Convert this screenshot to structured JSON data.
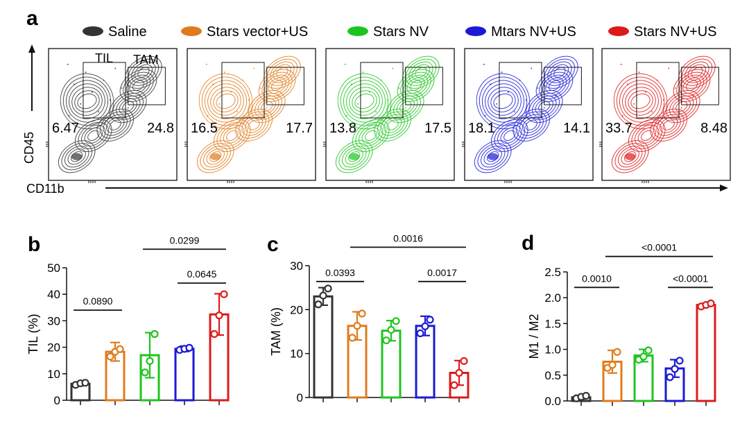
{
  "panel_letters": {
    "a": "a",
    "b": "b",
    "c": "c",
    "d": "d"
  },
  "colors": {
    "saline": "#333333",
    "stars_vector_us": "#e07b1b",
    "stars_nv": "#1ec41e",
    "mtars_nv_us": "#1a1ad6",
    "stars_nv_us": "#dd1a1a"
  },
  "legend": [
    {
      "label": "Saline",
      "color": "#333333"
    },
    {
      "label": "Stars vector+US",
      "color": "#e07b1b"
    },
    {
      "label": "Stars NV",
      "color": "#1ec41e"
    },
    {
      "label": "Mtars NV+US",
      "color": "#1a1ad6"
    },
    {
      "label": "Stars NV+US",
      "color": "#dd1a1a"
    }
  ],
  "flow": {
    "x_axis_label": "CD11b",
    "y_axis_label": "CD45",
    "gate_til_label": "TIL",
    "gate_tam_label": "TAM",
    "plots": [
      {
        "group": "Saline",
        "color": "#333333",
        "til": "6.47",
        "tam": "24.8"
      },
      {
        "group": "Stars vector+US",
        "color": "#e07b1b",
        "til": "16.5",
        "tam": "17.7"
      },
      {
        "group": "Stars NV",
        "color": "#1ec41e",
        "til": "13.8",
        "tam": "17.5"
      },
      {
        "group": "Mtars NV+US",
        "color": "#1a1ad6",
        "til": "18.1",
        "tam": "14.1"
      },
      {
        "group": "Stars NV+US",
        "color": "#dd1a1a",
        "til": "33.7",
        "tam": "8.48"
      }
    ]
  },
  "chart_data": [
    {
      "panel": "b",
      "type": "bar",
      "ylabel": "TIL (%)",
      "ylim": [
        0,
        50
      ],
      "yticks": [
        "0",
        "10",
        "20",
        "30",
        "40",
        "50"
      ],
      "categories": [
        "Saline",
        "Stars vector+US",
        "Stars NV",
        "Mtars NV+US",
        "Stars NV+US"
      ],
      "colors": [
        "#333333",
        "#e07b1b",
        "#1ec41e",
        "#1a1ad6",
        "#dd1a1a"
      ],
      "values": [
        6.2,
        18.3,
        17.0,
        19.4,
        32.4
      ],
      "errors": [
        0.7,
        3.5,
        8.5,
        1.0,
        7.8
      ],
      "points": [
        [
          5.8,
          6.4,
          6.6
        ],
        [
          16.5,
          18.3,
          19.3
        ],
        [
          10.5,
          14.8,
          25.0
        ],
        [
          19.0,
          19.4,
          19.8
        ],
        [
          25.0,
          32.0,
          40.0
        ]
      ],
      "comparisons": [
        {
          "from": 0,
          "to": 1,
          "label": "0.0890",
          "level": 34
        },
        {
          "from": 3,
          "to": 4,
          "label": "0.0645",
          "level": 44.2
        },
        {
          "from": 2,
          "to": 4,
          "label": "0.0299",
          "level": 57
        }
      ]
    },
    {
      "panel": "c",
      "type": "bar",
      "ylabel": "TAM (%)",
      "ylim": [
        0,
        30
      ],
      "yticks": [
        "0",
        "10",
        "20",
        "30"
      ],
      "categories": [
        "Saline",
        "Stars vector+US",
        "Stars NV",
        "Mtars NV+US",
        "Stars NV+US"
      ],
      "colors": [
        "#333333",
        "#e07b1b",
        "#1ec41e",
        "#1a1ad6",
        "#dd1a1a"
      ],
      "values": [
        23.0,
        16.3,
        15.2,
        16.3,
        5.6
      ],
      "errors": [
        2.0,
        3.2,
        2.3,
        2.2,
        2.8
      ],
      "points": [
        [
          21.2,
          23.2,
          24.8
        ],
        [
          13.6,
          16.3,
          19.1
        ],
        [
          13.0,
          15.4,
          17.4
        ],
        [
          14.6,
          16.2,
          17.7
        ],
        [
          2.8,
          5.6,
          8.3
        ]
      ],
      "comparisons": [
        {
          "from": 0,
          "to": 1,
          "label": "0.0393",
          "level": 26.4
        },
        {
          "from": 3,
          "to": 4,
          "label": "0.0017",
          "level": 26.4
        },
        {
          "from": 1,
          "to": 4,
          "label": "0.0016",
          "level": 34.2
        }
      ]
    },
    {
      "panel": "d",
      "type": "bar",
      "ylabel": "M1 / M2",
      "ylim": [
        0,
        2.5
      ],
      "yticks": [
        "0.0",
        "0.5",
        "1.0",
        "1.5",
        "2.0",
        "2.5"
      ],
      "categories": [
        "Saline",
        "Stars vector+US",
        "Stars NV",
        "Mtars NV+US",
        "Stars NV+US"
      ],
      "colors": [
        "#333333",
        "#e07b1b",
        "#1ec41e",
        "#1a1ad6",
        "#dd1a1a"
      ],
      "values": [
        0.07,
        0.76,
        0.88,
        0.63,
        1.86
      ],
      "errors": [
        0.03,
        0.22,
        0.12,
        0.17,
        0.03
      ],
      "points": [
        [
          0.05,
          0.08,
          0.1
        ],
        [
          0.64,
          0.7,
          0.95
        ],
        [
          0.8,
          0.86,
          0.98
        ],
        [
          0.46,
          0.62,
          0.78
        ],
        [
          1.83,
          1.86,
          1.89
        ]
      ],
      "comparisons": [
        {
          "from": 0,
          "to": 1,
          "label": "0.0010",
          "level": 2.2
        },
        {
          "from": 3,
          "to": 4,
          "label": "<0.0001",
          "level": 2.2
        },
        {
          "from": 1,
          "to": 4,
          "label": "<0.0001",
          "level": 2.8
        }
      ]
    }
  ]
}
